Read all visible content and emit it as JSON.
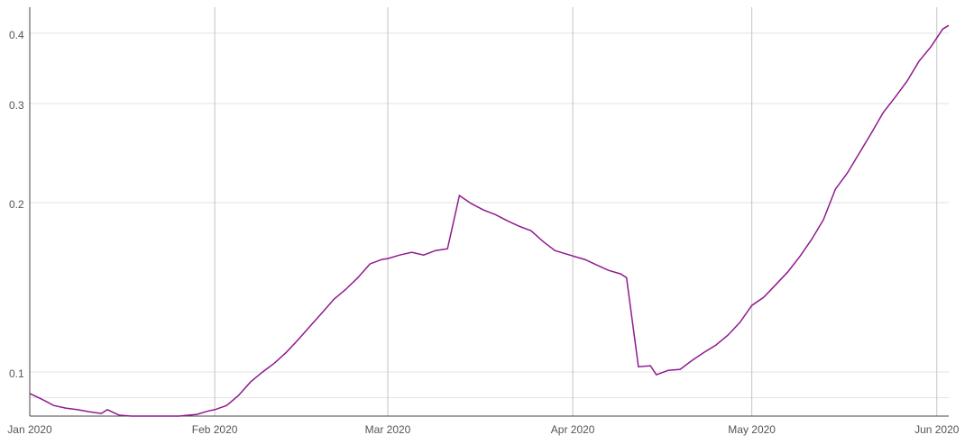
{
  "chart_data": {
    "type": "line",
    "x": [
      0,
      2,
      4,
      6,
      8,
      10,
      12,
      13,
      15,
      17,
      20,
      25,
      28,
      30,
      31,
      33,
      35,
      37,
      39,
      41,
      43,
      45,
      47,
      49,
      51,
      53,
      55,
      57,
      59,
      60,
      62,
      64,
      66,
      68,
      70,
      72,
      74,
      76,
      78,
      80,
      82,
      84,
      86,
      88,
      91,
      93,
      95,
      97,
      99,
      100,
      102,
      104,
      105,
      107,
      109,
      111,
      113,
      115,
      117,
      119,
      121,
      123,
      125,
      127,
      129,
      131,
      133,
      135,
      137,
      139,
      141,
      143,
      145,
      147,
      149,
      151,
      153,
      154
    ],
    "series": [
      {
        "color": "#8e1a8e",
        "values": [
          0.0916,
          0.0895,
          0.0872,
          0.0863,
          0.0857,
          0.085,
          0.0844,
          0.0857,
          0.0838,
          0.0835,
          0.0835,
          0.0835,
          0.0841,
          0.0853,
          0.0857,
          0.0872,
          0.0909,
          0.096,
          0.1,
          0.1037,
          0.1084,
          0.1142,
          0.1207,
          0.1275,
          0.1348,
          0.1404,
          0.1472,
          0.1556,
          0.1585,
          0.1591,
          0.1614,
          0.1632,
          0.1614,
          0.1644,
          0.1656,
          0.2059,
          0.1992,
          0.1941,
          0.1905,
          0.1857,
          0.1816,
          0.1783,
          0.1706,
          0.1644,
          0.1608,
          0.1585,
          0.155,
          0.1516,
          0.1494,
          0.1472,
          0.1022,
          0.1026,
          0.0989,
          0.1007,
          0.1011,
          0.1049,
          0.1084,
          0.1117,
          0.1163,
          0.1225,
          0.1313,
          0.1358,
          0.1429,
          0.1505,
          0.1602,
          0.1719,
          0.1864,
          0.2113,
          0.2257,
          0.2448,
          0.2655,
          0.2889,
          0.3076,
          0.3287,
          0.3565,
          0.3782,
          0.4071,
          0.413
        ]
      }
    ],
    "xlim": [
      0,
      154
    ],
    "xticks": [
      {
        "value": 0,
        "label": "Jan 2020"
      },
      {
        "value": 31,
        "label": "Feb 2020"
      },
      {
        "value": 60,
        "label": "Mar 2020"
      },
      {
        "value": 91,
        "label": "Apr 2020"
      },
      {
        "value": 121,
        "label": "May 2020"
      },
      {
        "value": 152,
        "label": "Jun 2020"
      }
    ],
    "ylim": [
      0.0835,
      0.445
    ],
    "yticks": [
      {
        "value": 0.09,
        "label": null
      },
      0.1,
      0.2,
      0.3,
      0.4
    ],
    "yscale": "log",
    "grid": true
  }
}
